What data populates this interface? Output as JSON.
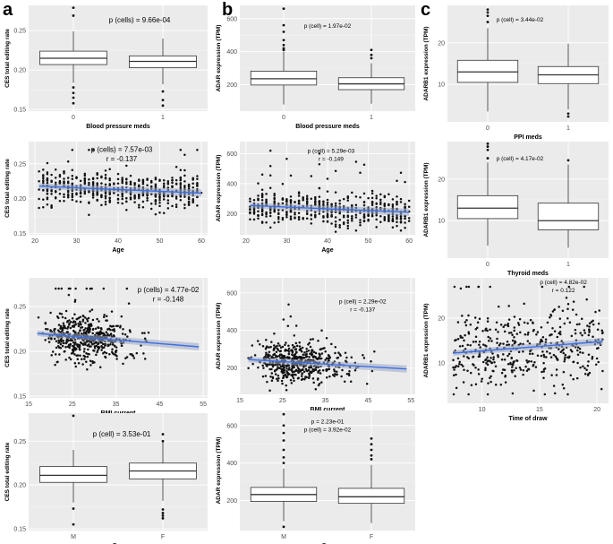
{
  "figure": {
    "panel_labels": [
      "a",
      "b",
      "c"
    ]
  },
  "chart_data": [
    {
      "id": "a1",
      "type": "box",
      "column": "a",
      "title": "",
      "xlabel": "Blood pressure meds",
      "ylabel": "CES total editing rate",
      "categories": [
        "0",
        "1"
      ],
      "yticks": [
        0.15,
        0.2,
        0.25
      ],
      "ylim": [
        0.148,
        0.282
      ],
      "boxes": [
        {
          "q1": 0.207,
          "median": 0.215,
          "q3": 0.224,
          "whislo": 0.184,
          "whishi": 0.249,
          "outliers": [
            0.279,
            0.269,
            0.178,
            0.171,
            0.165,
            0.158
          ]
        },
        {
          "q1": 0.203,
          "median": 0.211,
          "q3": 0.218,
          "whislo": 0.182,
          "whishi": 0.24,
          "outliers": [
            0.173,
            0.162,
            0.155
          ]
        }
      ],
      "annotations": [
        "p (cells) = 9.66e-04"
      ]
    },
    {
      "id": "b1",
      "type": "box",
      "column": "b",
      "title": "",
      "xlabel": "Blood pressure meds",
      "ylabel": "ADAR expression (TPM)",
      "categories": [
        "0",
        "1"
      ],
      "yticks": [
        200,
        400,
        600
      ],
      "ylim": [
        40,
        680
      ],
      "boxes": [
        {
          "q1": 198,
          "median": 236,
          "q3": 282,
          "whislo": 80,
          "whishi": 400,
          "outliers": [
            660,
            560,
            520,
            470,
            440,
            420,
            410
          ]
        },
        {
          "q1": 170,
          "median": 205,
          "q3": 242,
          "whislo": 85,
          "whishi": 330,
          "outliers": [
            410,
            380,
            360
          ]
        }
      ],
      "annotations": [
        "p (cell) = 1.97e-02"
      ]
    },
    {
      "id": "c1",
      "type": "box",
      "column": "c",
      "title": "",
      "xlabel": "PPI meds",
      "ylabel": "ADARB1 expression (TPM)",
      "categories": [
        "0",
        "1"
      ],
      "yticks": [
        10,
        20
      ],
      "ylim": [
        1,
        29
      ],
      "boxes": [
        {
          "q1": 10.5,
          "median": 13.0,
          "q3": 15.8,
          "whislo": 3.5,
          "whishi": 23.5,
          "outliers": [
            28.0,
            27.3,
            26.5,
            25.0
          ]
        },
        {
          "q1": 10.2,
          "median": 12.3,
          "q3": 14.3,
          "whislo": 4.0,
          "whishi": 19.8,
          "outliers": [
            3.0,
            2.3
          ]
        }
      ],
      "annotations": [
        "p (cell) = 3.44e-02"
      ]
    },
    {
      "id": "a2",
      "type": "scatter",
      "column": "a",
      "title": "",
      "xlabel": "Age",
      "ylabel": "CES total editing rate",
      "xticks": [
        20,
        30,
        40,
        50,
        60
      ],
      "xlim": [
        18.5,
        61.5
      ],
      "yticks": [
        0.15,
        0.2,
        0.25
      ],
      "ylim": [
        0.148,
        0.282
      ],
      "n": 520,
      "xrange": [
        21,
        60
      ],
      "y_center": 0.214,
      "y_sd": 0.013,
      "y_min": 0.165,
      "y_max": 0.27,
      "fit": {
        "x": [
          21,
          60
        ],
        "y": [
          0.218,
          0.208
        ]
      },
      "annotations": [
        "p (cells) = 7.57e-03",
        "r = -0.137"
      ]
    },
    {
      "id": "b2",
      "type": "scatter",
      "column": "b",
      "title": "",
      "xlabel": "Age",
      "ylabel": "ADAR expression (TPM)",
      "xticks": [
        20,
        30,
        40,
        50,
        60
      ],
      "xlim": [
        18.5,
        61.5
      ],
      "yticks": [
        200,
        400,
        600
      ],
      "ylim": [
        60,
        680
      ],
      "n": 520,
      "xrange": [
        21,
        60
      ],
      "y_center": 232,
      "y_sd": 55,
      "y_min": 80,
      "y_max": 640,
      "fit": {
        "x": [
          21,
          60
        ],
        "y": [
          255,
          210
        ]
      },
      "annotations": [
        "p (cell) = 5.29e-03",
        "r = -0.149"
      ]
    },
    {
      "id": "a3",
      "type": "scatter",
      "column": "a",
      "title": "",
      "xlabel": "BMI current",
      "ylabel": "CES total editing rate",
      "xticks": [
        15,
        25,
        35,
        45,
        55
      ],
      "xlim": [
        15,
        56
      ],
      "yticks": [
        0.15,
        0.2,
        0.25
      ],
      "ylim": [
        0.148,
        0.282
      ],
      "n": 520,
      "xrange": [
        17,
        54
      ],
      "x_center": 25,
      "x_sd": 5,
      "y_center": 0.215,
      "y_sd": 0.013,
      "y_min": 0.16,
      "y_max": 0.27,
      "fit": {
        "x": [
          17,
          54
        ],
        "y": [
          0.22,
          0.205
        ]
      },
      "annotations": [
        "p (cells) = 4.77e-02",
        "r = -0.148"
      ]
    },
    {
      "id": "b3",
      "type": "scatter",
      "column": "b",
      "title": "",
      "xlabel": "BMI current",
      "ylabel": "ADAR expression (TPM)",
      "xticks": [
        15,
        25,
        35,
        45,
        55
      ],
      "xlim": [
        15,
        56
      ],
      "yticks": [
        200,
        400,
        600
      ],
      "ylim": [
        60,
        680
      ],
      "n": 520,
      "xrange": [
        17,
        54
      ],
      "x_center": 25,
      "x_sd": 5,
      "y_center": 232,
      "y_sd": 55,
      "y_min": 80,
      "y_max": 640,
      "fit": {
        "x": [
          17,
          54
        ],
        "y": [
          245,
          195
        ]
      },
      "annotations": [
        "p (cell) = 2.29e-02",
        "r = -0.137"
      ]
    },
    {
      "id": "a4",
      "type": "box",
      "column": "a",
      "title": "",
      "xlabel": "Sex",
      "ylabel": "CES total editing rate",
      "categories": [
        "M",
        "F"
      ],
      "yticks": [
        0.15,
        0.2,
        0.25
      ],
      "ylim": [
        0.148,
        0.282
      ],
      "boxes": [
        {
          "q1": 0.203,
          "median": 0.211,
          "q3": 0.221,
          "whislo": 0.18,
          "whishi": 0.24,
          "outliers": [
            0.279,
            0.173,
            0.155
          ]
        },
        {
          "q1": 0.207,
          "median": 0.216,
          "q3": 0.225,
          "whislo": 0.182,
          "whishi": 0.249,
          "outliers": [
            0.258,
            0.25,
            0.172,
            0.168,
            0.165,
            0.162
          ]
        }
      ],
      "annotations": [
        "p (cell) = 3.53e-01"
      ]
    },
    {
      "id": "b4",
      "type": "box",
      "column": "b",
      "title": "",
      "xlabel": "Sex",
      "ylabel": "ADAR expression (TPM)",
      "categories": [
        "M",
        "F"
      ],
      "yticks": [
        200,
        400,
        600
      ],
      "ylim": [
        40,
        680
      ],
      "boxes": [
        {
          "q1": 195,
          "median": 232,
          "q3": 270,
          "whislo": 90,
          "whishi": 370,
          "outliers": [
            660,
            600,
            560,
            520,
            470,
            430,
            400,
            60
          ]
        },
        {
          "q1": 185,
          "median": 220,
          "q3": 265,
          "whislo": 80,
          "whishi": 390,
          "outliers": [
            530,
            500,
            470,
            440,
            420
          ]
        }
      ],
      "annotations": [
        "p = 2.23e-01",
        "p (cell) = 3.92e-02"
      ]
    },
    {
      "id": "c2",
      "type": "box",
      "column": "c",
      "title": "",
      "xlabel": "Thyroid meds",
      "ylabel": "ADARB1 expression (TPM)",
      "categories": [
        "0",
        "1"
      ],
      "yticks": [
        10,
        20
      ],
      "ylim": [
        1,
        29
      ],
      "boxes": [
        {
          "q1": 10.5,
          "median": 13.0,
          "q3": 16.0,
          "whislo": 4.0,
          "whishi": 24.0,
          "outliers": [
            28.5,
            27.8,
            27.0,
            25.0
          ]
        },
        {
          "q1": 7.8,
          "median": 10.0,
          "q3": 14.2,
          "whislo": 3.5,
          "whishi": 23.5,
          "outliers": [
            24.5
          ]
        }
      ],
      "annotations": [
        "p (cell) = 4.17e-02"
      ]
    },
    {
      "id": "c3",
      "type": "scatter",
      "column": "c",
      "title": "",
      "xlabel": "Time of draw",
      "ylabel": "ADARB1 expression (TPM)",
      "xticks": [
        10,
        15,
        20
      ],
      "xlim": [
        7,
        21
      ],
      "yticks": [
        10,
        20
      ],
      "ylim": [
        1,
        29
      ],
      "n": 430,
      "xrange": [
        7.5,
        20.5
      ],
      "y_center": 13,
      "y_sd": 4.5,
      "y_min": 3,
      "y_max": 27,
      "fit": {
        "x": [
          7.5,
          20.5
        ],
        "y": [
          12.2,
          14.8
        ]
      },
      "annotations": [
        "p (cell) = 4.82e-02",
        "r = 0.122"
      ]
    }
  ]
}
